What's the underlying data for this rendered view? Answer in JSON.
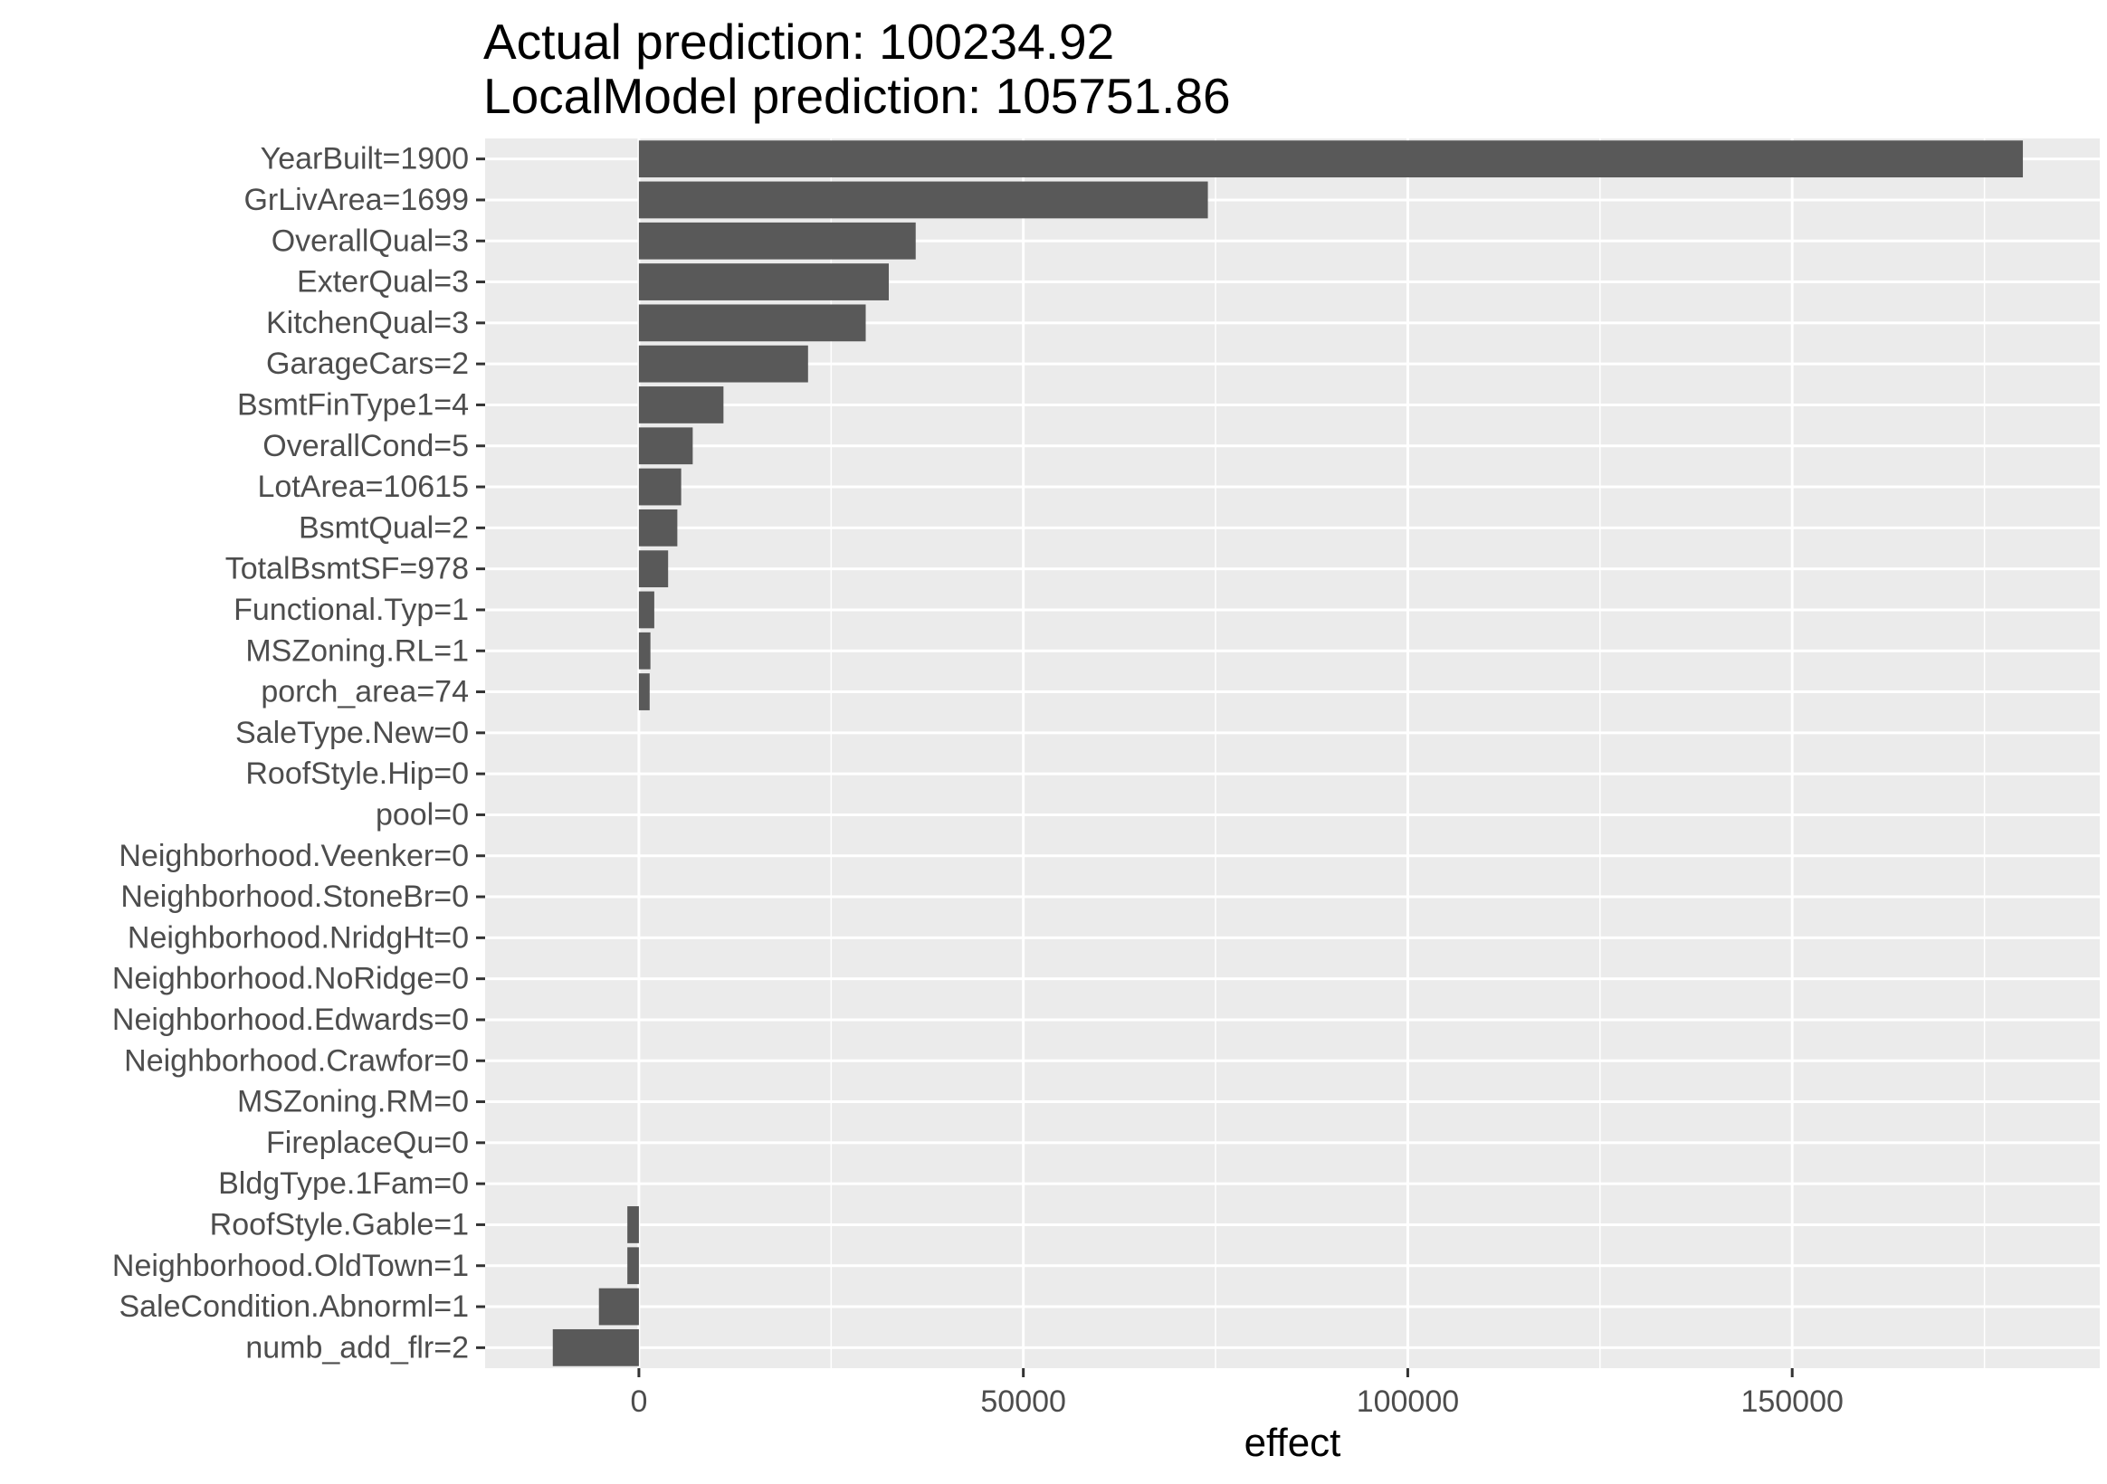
{
  "chart_data": {
    "type": "bar",
    "orientation": "horizontal",
    "title": "Actual prediction: 100234.92",
    "subtitle": "LocalModel prediction: 105751.86",
    "xlabel": "effect",
    "ylabel": "",
    "xlim": [
      -20000,
      190000
    ],
    "xticks": [
      0,
      50000,
      100000,
      150000
    ],
    "xtick_labels": [
      "0",
      "50000",
      "100000",
      "150000"
    ],
    "grid": true,
    "legend": "none",
    "bar_color": "#595959",
    "panel_color": "#ebebeb",
    "categories": [
      "YearBuilt=1900",
      "GrLivArea=1699",
      "OverallQual=3",
      "ExterQual=3",
      "KitchenQual=3",
      "GarageCars=2",
      "BsmtFinType1=4",
      "OverallCond=5",
      "LotArea=10615",
      "BsmtQual=2",
      "TotalBsmtSF=978",
      "Functional.Typ=1",
      "MSZoning.RL=1",
      "porch_area=74",
      "SaleType.New=0",
      "RoofStyle.Hip=0",
      "pool=0",
      "Neighborhood.Veenker=0",
      "Neighborhood.StoneBr=0",
      "Neighborhood.NridgHt=0",
      "Neighborhood.NoRidge=0",
      "Neighborhood.Edwards=0",
      "Neighborhood.Crawfor=0",
      "MSZoning.RM=0",
      "FireplaceQu=0",
      "BldgType.1Fam=0",
      "RoofStyle.Gable=1",
      "Neighborhood.OldTown=1",
      "SaleCondition.Abnorml=1",
      "numb_add_flr=2"
    ],
    "values": [
      180000,
      74000,
      36000,
      32500,
      29500,
      22000,
      11000,
      7000,
      5500,
      5000,
      3800,
      2000,
      1500,
      1400,
      0,
      0,
      0,
      0,
      0,
      0,
      0,
      0,
      0,
      0,
      0,
      0,
      -1500,
      -1500,
      -5200,
      -11200
    ]
  }
}
